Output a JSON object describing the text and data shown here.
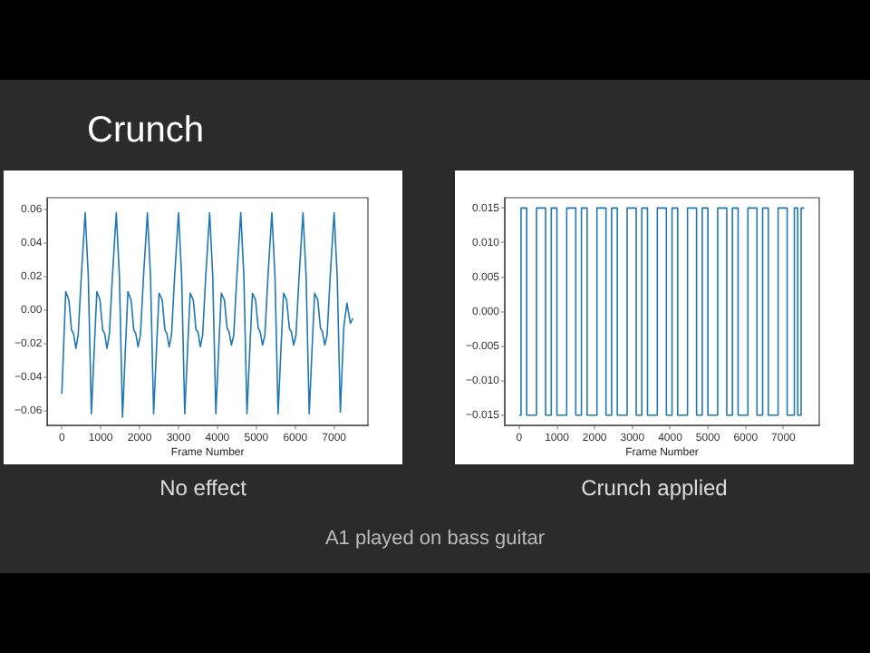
{
  "chart_data": [
    {
      "type": "line",
      "title": "Crunch",
      "xlabel": "Frame Number",
      "color": "#1f77b4",
      "grid": false,
      "annotations": [
        "No effect"
      ],
      "xlim": [
        -370,
        7870
      ],
      "ylim": [
        -0.069,
        0.067
      ],
      "xticks": [
        0,
        1000,
        2000,
        3000,
        4000,
        5000,
        6000,
        7000
      ],
      "yticks": [
        {
          "value": -0.06,
          "label": "−0.06"
        },
        {
          "value": -0.04,
          "label": "−0.04"
        },
        {
          "value": -0.02,
          "label": "−0.02"
        },
        {
          "value": 0,
          "label": "0.00"
        },
        {
          "value": 0.02,
          "label": "0.02"
        },
        {
          "value": 0.04,
          "label": "0.04"
        },
        {
          "value": 0.06,
          "label": "0.06"
        }
      ],
      "x": [
        0,
        100,
        180,
        250,
        300,
        360,
        420,
        500,
        600,
        680,
        760,
        840,
        900,
        980,
        1050,
        1100,
        1160,
        1220,
        1300,
        1400,
        1480,
        1560,
        1640,
        1700,
        1780,
        1850,
        1900,
        1960,
        2020,
        2100,
        2200,
        2280,
        2360,
        2440,
        2500,
        2580,
        2650,
        2700,
        2760,
        2820,
        2900,
        3000,
        3080,
        3160,
        3240,
        3300,
        3380,
        3450,
        3500,
        3560,
        3620,
        3700,
        3800,
        3880,
        3960,
        4040,
        4100,
        4180,
        4250,
        4300,
        4360,
        4420,
        4500,
        4600,
        4680,
        4760,
        4840,
        4900,
        4980,
        5050,
        5100,
        5160,
        5220,
        5300,
        5400,
        5480,
        5560,
        5640,
        5700,
        5780,
        5850,
        5900,
        5960,
        6020,
        6100,
        6200,
        6280,
        6360,
        6440,
        6500,
        6580,
        6650,
        6700,
        6760,
        6820,
        6900,
        7000,
        7080,
        7160,
        7250,
        7330,
        7420,
        7480
      ],
      "values": [
        -0.05,
        0.011,
        0.006,
        -0.012,
        -0.014,
        -0.023,
        -0.015,
        0.02,
        0.058,
        0.02,
        -0.062,
        -0.02,
        0.011,
        0.006,
        -0.012,
        -0.014,
        -0.023,
        -0.015,
        0.02,
        0.058,
        0.02,
        -0.064,
        -0.02,
        0.011,
        0.006,
        -0.012,
        -0.014,
        -0.022,
        -0.015,
        0.02,
        0.058,
        0.02,
        -0.062,
        -0.02,
        0.01,
        0.006,
        -0.012,
        -0.014,
        -0.022,
        -0.015,
        0.02,
        0.058,
        0.02,
        -0.062,
        -0.02,
        0.01,
        0.006,
        -0.012,
        -0.013,
        -0.022,
        -0.015,
        0.02,
        0.058,
        0.02,
        -0.062,
        -0.02,
        0.01,
        0.006,
        -0.011,
        -0.013,
        -0.021,
        -0.015,
        0.02,
        0.058,
        0.02,
        -0.062,
        -0.02,
        0.01,
        0.006,
        -0.011,
        -0.013,
        -0.021,
        -0.015,
        0.02,
        0.058,
        0.02,
        -0.062,
        -0.02,
        0.01,
        0.006,
        -0.011,
        -0.013,
        -0.021,
        -0.015,
        0.02,
        0.058,
        0.02,
        -0.062,
        -0.02,
        0.01,
        0.006,
        -0.011,
        -0.013,
        -0.021,
        -0.015,
        0.02,
        0.058,
        0.02,
        -0.061,
        -0.01,
        0.004,
        -0.008,
        -0.005
      ]
    },
    {
      "type": "line",
      "xlabel": "Frame Number",
      "color": "#1f77b4",
      "grid": false,
      "annotations": [
        "Crunch applied",
        "A1 played on bass guitar"
      ],
      "xlim": [
        -380,
        7950
      ],
      "ylim": [
        -0.0165,
        0.0165
      ],
      "xticks": [
        0,
        1000,
        2000,
        3000,
        4000,
        5000,
        6000,
        7000
      ],
      "yticks": [
        {
          "value": -0.015,
          "label": "−0.015"
        },
        {
          "value": -0.01,
          "label": "−0.010"
        },
        {
          "value": -0.005,
          "label": "−0.005"
        },
        {
          "value": 0,
          "label": "0.000"
        },
        {
          "value": 0.005,
          "label": "0.005"
        },
        {
          "value": 0.01,
          "label": "0.010"
        },
        {
          "value": 0.015,
          "label": "0.015"
        }
      ],
      "x": [
        0,
        50,
        50,
        200,
        200,
        460,
        460,
        700,
        700,
        850,
        850,
        1000,
        1000,
        1260,
        1260,
        1500,
        1500,
        1650,
        1650,
        1800,
        1800,
        2060,
        2060,
        2300,
        2300,
        2450,
        2450,
        2600,
        2600,
        2860,
        2860,
        3100,
        3100,
        3250,
        3250,
        3400,
        3400,
        3660,
        3660,
        3900,
        3900,
        4050,
        4050,
        4200,
        4200,
        4460,
        4460,
        4700,
        4700,
        4850,
        4850,
        5000,
        5000,
        5260,
        5260,
        5500,
        5500,
        5650,
        5650,
        5800,
        5800,
        6060,
        6060,
        6300,
        6300,
        6450,
        6450,
        6600,
        6600,
        6860,
        6860,
        7100,
        7100,
        7290,
        7290,
        7380,
        7380,
        7470,
        7470,
        7550
      ],
      "values": [
        -0.015,
        -0.015,
        0.015,
        0.015,
        -0.015,
        -0.015,
        0.015,
        0.015,
        -0.015,
        -0.015,
        0.015,
        0.015,
        -0.015,
        -0.015,
        0.015,
        0.015,
        -0.015,
        -0.015,
        0.015,
        0.015,
        -0.015,
        -0.015,
        0.015,
        0.015,
        -0.015,
        -0.015,
        0.015,
        0.015,
        -0.015,
        -0.015,
        0.015,
        0.015,
        -0.015,
        -0.015,
        0.015,
        0.015,
        -0.015,
        -0.015,
        0.015,
        0.015,
        -0.015,
        -0.015,
        0.015,
        0.015,
        -0.015,
        -0.015,
        0.015,
        0.015,
        -0.015,
        -0.015,
        0.015,
        0.015,
        -0.015,
        -0.015,
        0.015,
        0.015,
        -0.015,
        -0.015,
        0.015,
        0.015,
        -0.015,
        -0.015,
        0.015,
        0.015,
        -0.015,
        -0.015,
        0.015,
        0.015,
        -0.015,
        -0.015,
        0.015,
        0.015,
        -0.015,
        -0.015,
        0.015,
        0.015,
        -0.015,
        -0.015,
        0.015,
        0.015
      ]
    }
  ]
}
